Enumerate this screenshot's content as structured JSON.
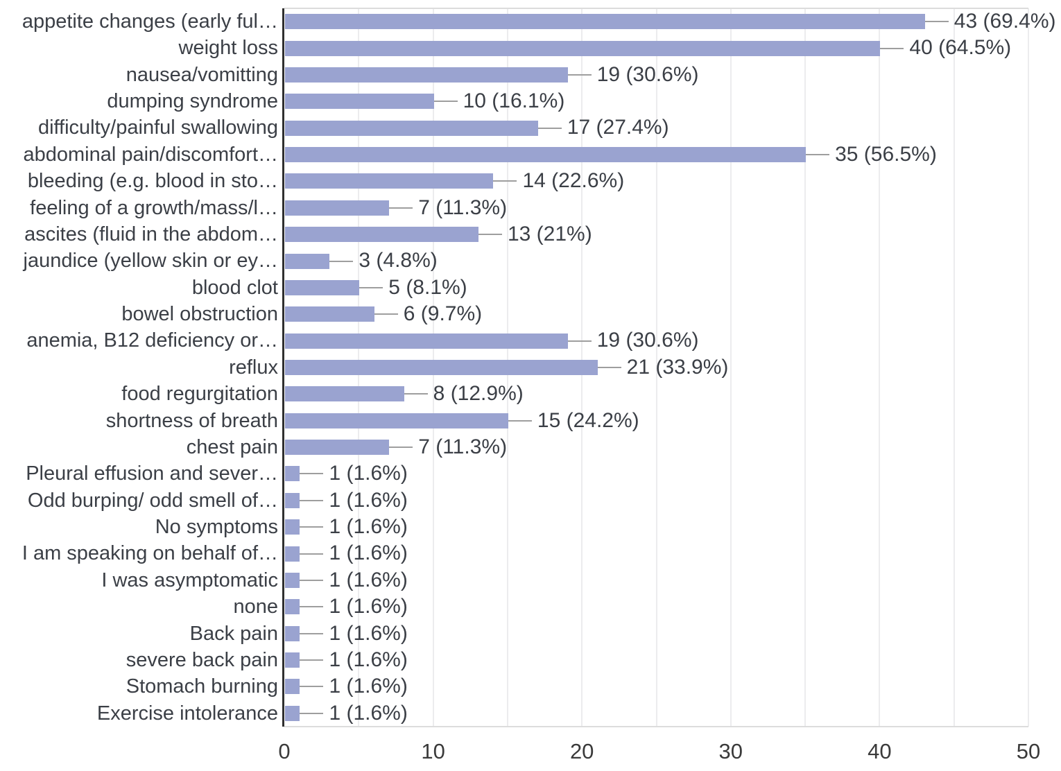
{
  "chart_data": {
    "type": "bar",
    "orientation": "horizontal",
    "title": "",
    "xlabel": "",
    "ylabel": "",
    "xlim": [
      0,
      50
    ],
    "x_ticks": [
      "0",
      "10",
      "20",
      "30",
      "40",
      "50"
    ],
    "grid": "vertical light gridlines every 5 units",
    "legend": "none",
    "bar_color": "#9aa3d0",
    "axis_line_color": "#2f2f2f",
    "gridline_color": "#ececee",
    "text_color": "#3b3f46",
    "categories": [
      "appetite changes (early ful…",
      "weight loss",
      "nausea/vomitting",
      "dumping syndrome",
      "difficulty/painful swallowing",
      "abdominal pain/discomfort…",
      "bleeding (e.g. blood in sto…",
      "feeling of a growth/mass/l…",
      "ascites (fluid in the abdom…",
      "jaundice (yellow skin or ey…",
      "blood clot",
      "bowel obstruction",
      "anemia, B12 deficiency or…",
      "reflux",
      "food regurgitation",
      "shortness of breath",
      "chest pain",
      "Pleural effusion and sever…",
      "Odd burping/ odd smell of…",
      "No symptoms",
      "I am speaking on behalf of…",
      "I was asymptomatic",
      "none",
      "Back pain",
      "severe back pain",
      "Stomach burning",
      "Exercise intolerance"
    ],
    "values": [
      43,
      40,
      19,
      10,
      17,
      35,
      14,
      7,
      13,
      3,
      5,
      6,
      19,
      21,
      8,
      15,
      7,
      1,
      1,
      1,
      1,
      1,
      1,
      1,
      1,
      1,
      1
    ],
    "percentages": [
      69.4,
      64.5,
      30.6,
      16.1,
      27.4,
      56.5,
      22.6,
      11.3,
      21,
      4.8,
      8.1,
      9.7,
      30.6,
      33.9,
      12.9,
      24.2,
      11.3,
      1.6,
      1.6,
      1.6,
      1.6,
      1.6,
      1.6,
      1.6,
      1.6,
      1.6,
      1.6
    ],
    "value_labels": [
      "43 (69.4%)",
      "40 (64.5%)",
      "19 (30.6%)",
      "10 (16.1%)",
      "17 (27.4%)",
      "35 (56.5%)",
      "14 (22.6%)",
      "7 (11.3%)",
      "13 (21%)",
      "3 (4.8%)",
      "5 (8.1%)",
      "6 (9.7%)",
      "19 (30.6%)",
      "21 (33.9%)",
      "8 (12.9%)",
      "15 (24.2%)",
      "7 (11.3%)",
      "1 (1.6%)",
      "1 (1.6%)",
      "1 (1.6%)",
      "1 (1.6%)",
      "1 (1.6%)",
      "1 (1.6%)",
      "1 (1.6%)",
      "1 (1.6%)",
      "1 (1.6%)",
      "1 (1.6%)"
    ]
  }
}
